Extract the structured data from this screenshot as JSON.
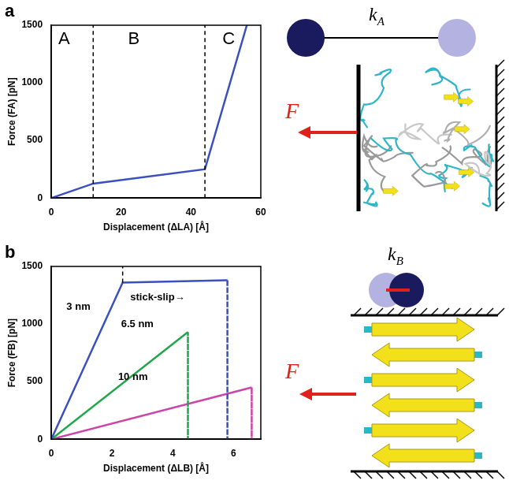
{
  "chart_data": [
    {
      "panel": "a",
      "type": "line",
      "x_label": "Displacement (ΔLA) [Å]",
      "y_label": "Force (FA) [pN]",
      "xlim": [
        0,
        60
      ],
      "xticks": [
        0,
        20,
        40,
        60
      ],
      "ylim": [
        0,
        1500
      ],
      "yticks": [
        0,
        500,
        1000,
        1500
      ],
      "grid": false,
      "series": [
        {
          "color": "#3a4fc0",
          "x": [
            0,
            12,
            44,
            56
          ],
          "values": [
            0,
            125,
            250,
            1500
          ]
        }
      ],
      "vlines": [
        {
          "x": 12
        },
        {
          "x": 44
        }
      ],
      "annotations": [
        {
          "text": "A",
          "x": 2,
          "y": 1380
        },
        {
          "text": "B",
          "x": 22,
          "y": 1380
        },
        {
          "text": "C",
          "x": 49,
          "y": 1380
        }
      ]
    },
    {
      "panel": "b",
      "type": "line",
      "x_label": "Displacement (ΔLB) [Å]",
      "y_label": "Force (FB) [pN]",
      "xlim": [
        0,
        6.9
      ],
      "xticks": [
        0,
        2,
        4,
        6
      ],
      "ylim": [
        0,
        1500
      ],
      "yticks": [
        0,
        500,
        1000,
        1500
      ],
      "grid": false,
      "series": [
        {
          "color": "#3a4fc0",
          "x": [
            0,
            2.35,
            5.8,
            5.8
          ],
          "values": [
            0,
            1360,
            1380,
            0
          ]
        },
        {
          "color": "#1fa64a",
          "x": [
            0,
            4.5,
            4.5
          ],
          "values": [
            0,
            930,
            0
          ]
        },
        {
          "color": "#cc44aa",
          "x": [
            0,
            6.6,
            6.6
          ],
          "values": [
            0,
            450,
            0
          ]
        }
      ],
      "vlines": [
        {
          "x": 2.35,
          "y0": 1360,
          "y1": 1500
        }
      ],
      "annotations": [
        {
          "text": "3 nm",
          "x": 0.5,
          "y": 1150
        },
        {
          "text": "stick-slip→",
          "x": 2.6,
          "y": 1230
        },
        {
          "text": "6.5 nm",
          "x": 2.3,
          "y": 1000
        },
        {
          "text": "10 nm",
          "x": 2.2,
          "y": 540
        }
      ]
    }
  ],
  "diagrams": [
    {
      "spring_label": "k",
      "spring_subscript": "A",
      "force_label": "F"
    },
    {
      "spring_label": "k",
      "spring_subscript": "B",
      "force_label": "F"
    }
  ]
}
